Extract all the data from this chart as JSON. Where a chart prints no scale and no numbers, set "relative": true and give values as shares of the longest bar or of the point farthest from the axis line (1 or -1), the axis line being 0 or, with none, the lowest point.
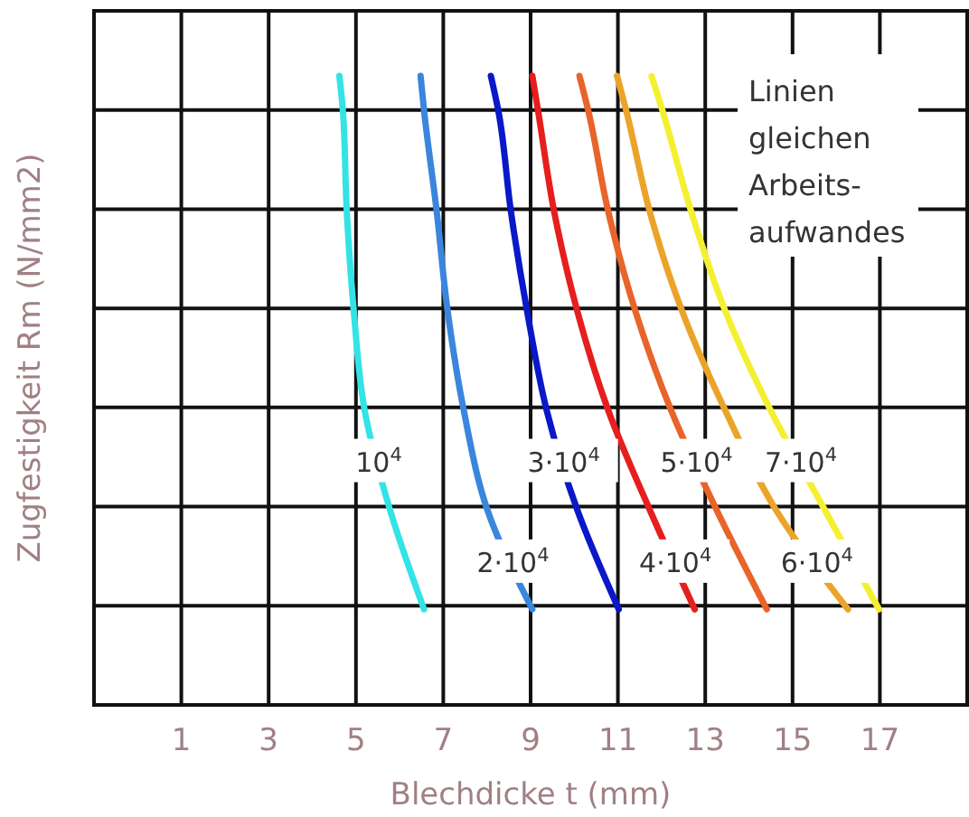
{
  "chart_data": {
    "type": "line",
    "xlabel": "Blechdicke t (mm)",
    "ylabel": "Zugfestigkeit Rm (N/mm2)",
    "relative": true,
    "xlim": [
      -1,
      19
    ],
    "xticks": [
      1,
      3,
      5,
      7,
      9,
      11,
      13,
      15,
      17
    ],
    "grid": true,
    "marker": "none",
    "line_style": "solid",
    "annotations": [
      "Linien\ngleichen\nArbeits-\naufwandes"
    ],
    "series": [
      {
        "name": "10$^{4}$",
        "color": "#33e3e6",
        "x": [
          4.62,
          4.7,
          4.79,
          4.95,
          5.2,
          5.78,
          6.56
        ],
        "values": [
          1,
          0.945,
          0.784,
          0.626,
          0.468,
          0.31,
          0.152
        ]
      },
      {
        "name": "2·10$^{4}$",
        "color": "#3a86dc",
        "x": [
          6.48,
          6.56,
          6.85,
          7.1,
          7.47,
          8.01,
          9.04
        ],
        "values": [
          1,
          0.945,
          0.784,
          0.626,
          0.468,
          0.31,
          0.152
        ]
      },
      {
        "name": "3·10$^{4}$",
        "color": "#0a18c8",
        "x": [
          8.09,
          8.26,
          8.55,
          8.92,
          9.37,
          10.07,
          11.02
        ],
        "values": [
          1,
          0.945,
          0.784,
          0.626,
          0.468,
          0.31,
          0.152
        ]
      },
      {
        "name": "4·10$^{4}$",
        "color": "#e61e1e",
        "x": [
          9.04,
          9.17,
          9.54,
          10.07,
          10.78,
          11.73,
          12.76
        ],
        "values": [
          1,
          0.945,
          0.784,
          0.626,
          0.468,
          0.31,
          0.152
        ]
      },
      {
        "name": "5·10$^{4}$",
        "color": "#e8642a",
        "x": [
          10.12,
          10.32,
          10.78,
          11.4,
          12.22,
          13.26,
          14.41
        ],
        "values": [
          1,
          0.945,
          0.784,
          0.626,
          0.468,
          0.31,
          0.152
        ]
      },
      {
        "name": "6·10$^{4}$",
        "color": "#eba42a",
        "x": [
          10.98,
          11.19,
          11.73,
          12.47,
          13.46,
          14.62,
          16.27
        ],
        "values": [
          1,
          0.945,
          0.784,
          0.626,
          0.468,
          0.31,
          0.152
        ]
      },
      {
        "name": "7·10$^{4}$",
        "color": "#f5ef32",
        "x": [
          11.77,
          12.02,
          12.68,
          13.46,
          14.5,
          15.74,
          16.98
        ],
        "values": [
          1,
          0.945,
          0.784,
          0.626,
          0.468,
          0.31,
          0.152
        ]
      }
    ]
  }
}
